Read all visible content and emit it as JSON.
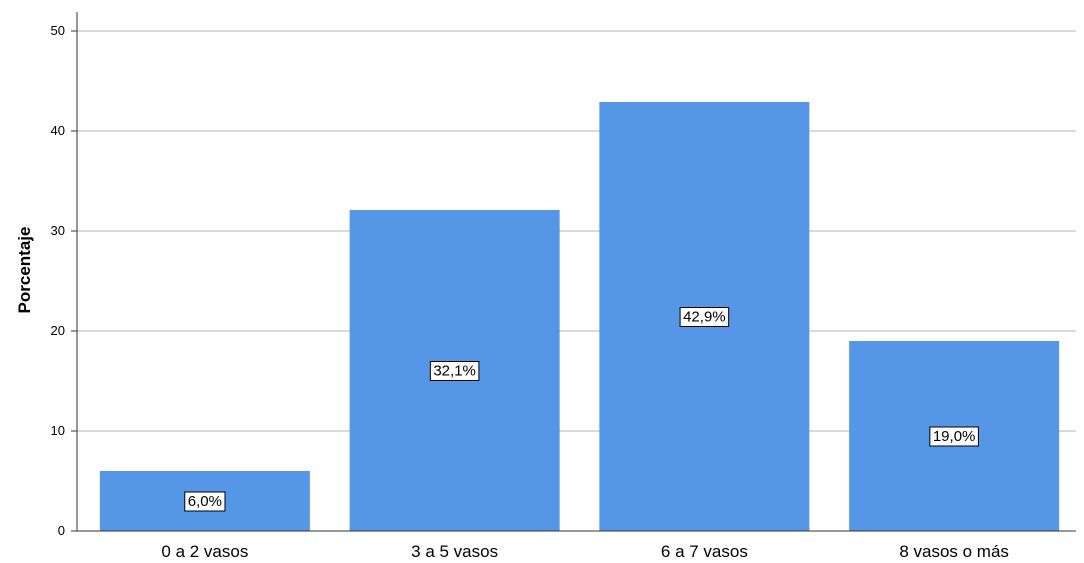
{
  "chart_data": {
    "type": "bar",
    "categories": [
      "0 a 2 vasos",
      "3 a 5 vasos",
      "6 a 7 vasos",
      "8 vasos o más"
    ],
    "values": [
      6.0,
      32.1,
      42.9,
      19.0
    ],
    "data_labels": [
      "6,0%",
      "32,1%",
      "42,9%",
      "19,0%"
    ],
    "title": "",
    "xlabel": "",
    "ylabel": "Porcentaje",
    "ylim": [
      0,
      50
    ],
    "yticks": [
      0,
      10,
      20,
      30,
      40,
      50
    ],
    "ytick_labels": [
      "0",
      "10",
      "20",
      "30",
      "40",
      "50"
    ],
    "grid": true,
    "legend": false,
    "bar_color": "#5596E6"
  }
}
